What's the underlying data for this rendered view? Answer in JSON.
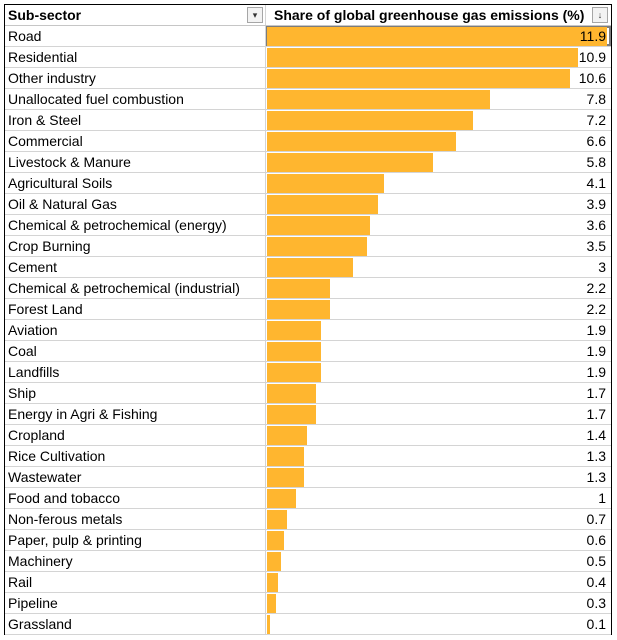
{
  "table": {
    "header": {
      "col_a": "Sub-sector",
      "col_b": "Share of global greenhouse gas emissions (%)",
      "filter_a_icon": "dropdown-filter-icon",
      "filter_b_icon": "sort-descending-filter-icon"
    },
    "bar_color": "#ffb62f",
    "bar_max": 11.9,
    "rows": [
      {
        "label": "Road",
        "value": 11.9,
        "text": "11.9"
      },
      {
        "label": "Residential",
        "value": 10.9,
        "text": "10.9"
      },
      {
        "label": "Other industry",
        "value": 10.6,
        "text": "10.6"
      },
      {
        "label": "Unallocated fuel combustion",
        "value": 7.8,
        "text": "7.8"
      },
      {
        "label": "Iron & Steel",
        "value": 7.2,
        "text": "7.2"
      },
      {
        "label": "Commercial",
        "value": 6.6,
        "text": "6.6"
      },
      {
        "label": "Livestock & Manure",
        "value": 5.8,
        "text": "5.8"
      },
      {
        "label": "Agricultural Soils",
        "value": 4.1,
        "text": "4.1"
      },
      {
        "label": "Oil & Natural Gas",
        "value": 3.9,
        "text": "3.9"
      },
      {
        "label": "Chemical & petrochemical (energy)",
        "value": 3.6,
        "text": "3.6"
      },
      {
        "label": "Crop Burning",
        "value": 3.5,
        "text": "3.5"
      },
      {
        "label": "Cement",
        "value": 3,
        "text": "3"
      },
      {
        "label": "Chemical & petrochemical (industrial)",
        "value": 2.2,
        "text": "2.2"
      },
      {
        "label": "Forest Land",
        "value": 2.2,
        "text": "2.2"
      },
      {
        "label": "Aviation",
        "value": 1.9,
        "text": "1.9"
      },
      {
        "label": "Coal",
        "value": 1.9,
        "text": "1.9"
      },
      {
        "label": "Landfills",
        "value": 1.9,
        "text": "1.9"
      },
      {
        "label": "Ship",
        "value": 1.7,
        "text": "1.7"
      },
      {
        "label": "Energy in Agri & Fishing",
        "value": 1.7,
        "text": "1.7"
      },
      {
        "label": "Cropland",
        "value": 1.4,
        "text": "1.4"
      },
      {
        "label": "Rice Cultivation",
        "value": 1.3,
        "text": "1.3"
      },
      {
        "label": "Wastewater",
        "value": 1.3,
        "text": "1.3"
      },
      {
        "label": "Food and tobacco",
        "value": 1,
        "text": "1"
      },
      {
        "label": "Non-ferous metals",
        "value": 0.7,
        "text": "0.7"
      },
      {
        "label": "Paper, pulp & printing",
        "value": 0.6,
        "text": "0.6"
      },
      {
        "label": "Machinery",
        "value": 0.5,
        "text": "0.5"
      },
      {
        "label": "Rail",
        "value": 0.4,
        "text": "0.4"
      },
      {
        "label": "Pipeline",
        "value": 0.3,
        "text": "0.3"
      },
      {
        "label": "Grassland",
        "value": 0.1,
        "text": "0.1"
      }
    ]
  }
}
